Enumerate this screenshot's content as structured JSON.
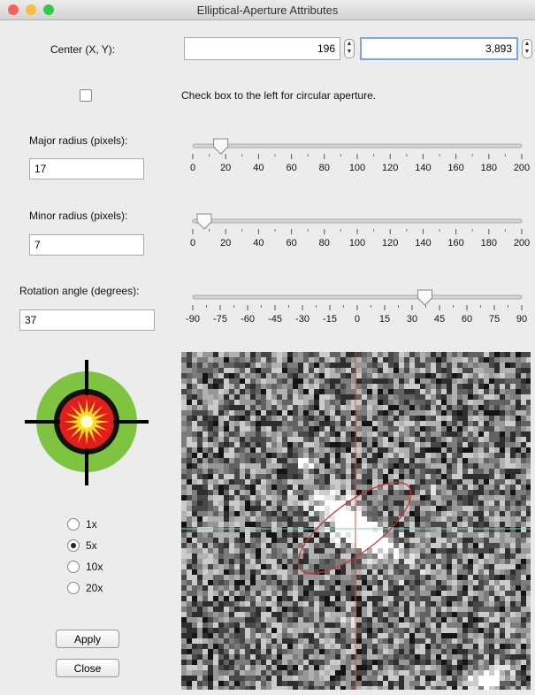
{
  "window": {
    "title": "Elliptical-Aperture Attributes"
  },
  "center": {
    "label": "Center (X, Y):",
    "x": "196",
    "y": "3,893"
  },
  "circular": {
    "label": "Check box to the left for circular aperture.",
    "checked": false
  },
  "sliders": [
    {
      "label": "Major radius (pixels):",
      "value": 17,
      "ticks": [
        0,
        20,
        40,
        60,
        80,
        100,
        120,
        140,
        160,
        180,
        200
      ]
    },
    {
      "label": "Minor radius (pixels):",
      "value": 7,
      "ticks": [
        0,
        20,
        40,
        60,
        80,
        100,
        120,
        140,
        160,
        180,
        200
      ]
    },
    {
      "label": "Rotation angle (degrees):",
      "value": 37,
      "ticks": [
        -90,
        -75,
        -60,
        -45,
        -30,
        -15,
        0,
        15,
        30,
        45,
        60,
        75,
        90
      ]
    }
  ],
  "magnification": {
    "options": [
      "1x",
      "5x",
      "10x",
      "20x"
    ],
    "selected": 1
  },
  "buttons": [
    "Apply",
    "Close"
  ]
}
